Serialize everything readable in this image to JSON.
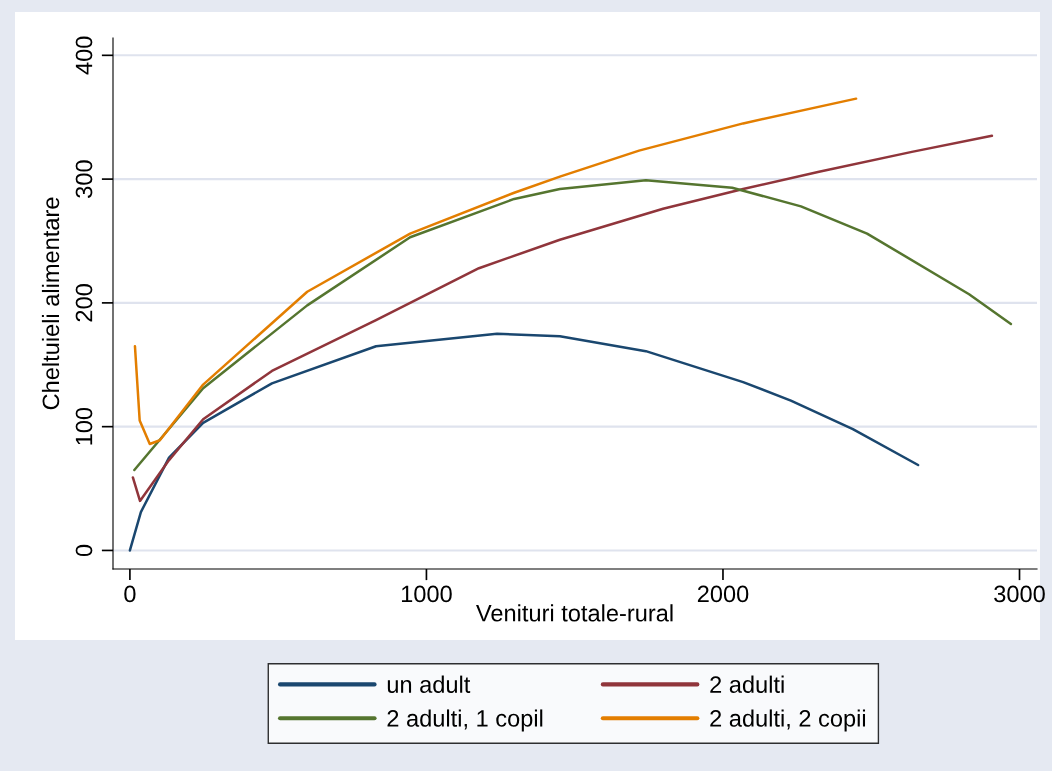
{
  "chart_data": {
    "type": "line",
    "xlabel": "Venituri totale-rural",
    "ylabel": "Cheltuieli alimentare",
    "xlim": [
      -57,
      3059
    ],
    "xticks": [
      0,
      1000,
      2000,
      3000
    ],
    "ylim": [
      -15,
      414
    ],
    "yticks": [
      0,
      100,
      200,
      300,
      400
    ],
    "grid": "y",
    "legend": "bottom",
    "marker": "none",
    "line_style": "solid",
    "series": [
      {
        "name": "un adult",
        "color": "#1a476f",
        "x": [
          0,
          37,
          132,
          247,
          479,
          830,
          1238,
          1450,
          1740,
          2068,
          2229,
          2438,
          2658
        ],
        "values": [
          0,
          31,
          75,
          103,
          135,
          165,
          175,
          173,
          161,
          136,
          121,
          98,
          69
        ]
      },
      {
        "name": "2 adulti",
        "color": "#90353b",
        "x": [
          10,
          34,
          132,
          247,
          479,
          830,
          1177,
          1450,
          1798,
          2068,
          2324,
          2637,
          2907
        ],
        "values": [
          59,
          40,
          73,
          106,
          145,
          186,
          228,
          251,
          276,
          292,
          306,
          322,
          335
        ]
      },
      {
        "name": "2 adulti, 1 copil",
        "color": "#55752f",
        "x": [
          15,
          247,
          598,
          945,
          1296,
          1450,
          1740,
          2031,
          2263,
          2486,
          2830,
          2971
        ],
        "values": [
          65,
          131,
          198,
          253,
          284,
          292,
          299,
          293,
          278,
          256,
          207,
          183
        ]
      },
      {
        "name": "2 adulti, 2 copii",
        "color": "#e37e00",
        "x": [
          17,
          33,
          67,
          101,
          247,
          598,
          945,
          1296,
          1450,
          1717,
          2068,
          2449
        ],
        "values": [
          165,
          105,
          86,
          89,
          134,
          209,
          256,
          289,
          302,
          323,
          345,
          365
        ]
      }
    ]
  }
}
